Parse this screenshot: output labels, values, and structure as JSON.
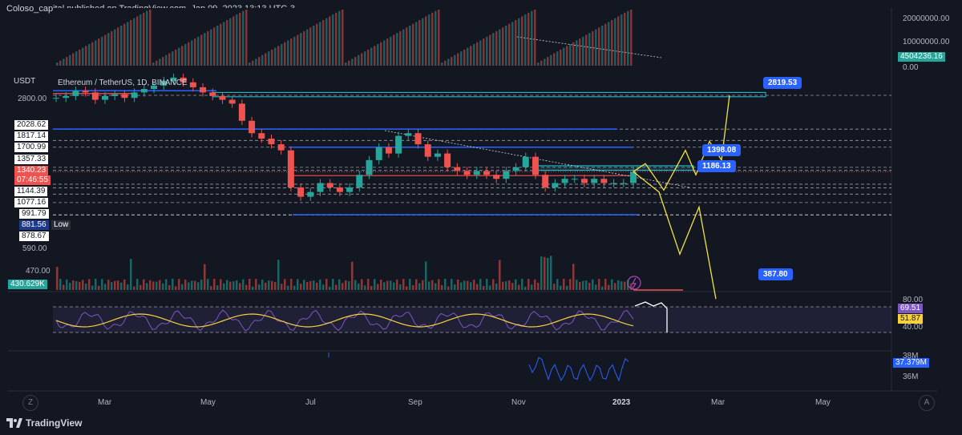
{
  "header": {
    "publisher": "Coloso_capital published on TradingView.com, Jan 09, 2023 13:13 UTC-3"
  },
  "symbol_legend": "Ethereum / TetherUS, 1D, BINANCE",
  "currency_label": "USDT",
  "footer": {
    "brand": "TradingView",
    "z_button": "Z",
    "a_button": "A"
  },
  "colors": {
    "bull": "#26a69a",
    "bear": "#ef5350",
    "rsi": "#7e57c2",
    "rsi_ma": "#f7d23e",
    "accent": "#2962ff",
    "projection": "#f3e33b",
    "background": "#131722"
  },
  "chart_data": [
    {
      "type": "candlestick",
      "title": "Ethereum / TetherUS, 1D, BINANCE",
      "x_tick_labels": [
        "Mar",
        "May",
        "Jul",
        "Sep",
        "Nov",
        "2023",
        "Mar",
        "May"
      ],
      "y_tick_labels": [
        "2800.00",
        "590.00",
        "470.00"
      ],
      "price_levels": [
        "2028.62",
        "1817.14",
        "1700.99",
        "1357.33",
        "1340.23",
        "1144.39",
        "1077.16",
        "991.79",
        "881.56",
        "878.67"
      ],
      "low_label": "Low",
      "last_price": "1340.23",
      "countdown": "07:46:55",
      "key_levels": [
        2819.53,
        2028.62,
        1817.14,
        1700.99,
        1398.08,
        1357.33,
        1186.13,
        1144.39,
        1077.16,
        991.79,
        881.56,
        878.67
      ],
      "annotations": [
        "2819.53",
        "1398.08",
        "1186.13",
        "387.80"
      ],
      "closes": [
        2750,
        2800,
        2950,
        2900,
        2700,
        2800,
        2850,
        2750,
        2900,
        3000,
        3100,
        3250,
        3350,
        3200,
        3050,
        2900,
        2800,
        2700,
        2600,
        2200,
        1950,
        1850,
        1750,
        1650,
        1150,
        1050,
        1100,
        1200,
        1150,
        1100,
        1150,
        1300,
        1500,
        1700,
        1600,
        1900,
        1950,
        1750,
        1550,
        1600,
        1400,
        1350,
        1300,
        1350,
        1300,
        1250,
        1350,
        1400,
        1550,
        1300,
        1150,
        1200,
        1250,
        1250,
        1200,
        1250,
        1200,
        1200,
        1200,
        1340
      ],
      "projection_path": [
        [
          1340,
          "Jan 09"
        ],
        [
          1450,
          "Jan 15"
        ],
        [
          1120,
          "Jan 22"
        ],
        [
          1650,
          "Feb 02"
        ],
        [
          1300,
          "Feb 08"
        ],
        [
          1800,
          "Feb 16"
        ],
        [
          1500,
          "Feb 22"
        ],
        [
          2819.53,
          "Mar 12"
        ]
      ],
      "projection_path_down": [
        [
          1340,
          "Jan 09"
        ],
        [
          1100,
          "Jan 20"
        ],
        [
          600,
          "Feb 10"
        ],
        [
          950,
          "Feb 20"
        ],
        [
          387.8,
          "Mar 05"
        ]
      ]
    },
    {
      "type": "bar",
      "title": "Volume",
      "last_value": "430.629K"
    },
    {
      "type": "bar",
      "title": "Cumulative volume (top pane)",
      "y_tick_labels": [
        "20000000.00",
        "10000000.00",
        "0.00"
      ],
      "last_value": "4504236.16"
    },
    {
      "type": "line",
      "title": "RSI",
      "y_tick_labels": [
        "80.00",
        "40.00"
      ],
      "series": [
        {
          "name": "RSI",
          "last": "69.51"
        },
        {
          "name": "RSI MA",
          "last": "51.87"
        }
      ]
    },
    {
      "type": "line",
      "title": "Oscillator (bottom pane)",
      "y_tick_labels": [
        "38M",
        "36M"
      ],
      "last_value": "37.379M"
    }
  ]
}
